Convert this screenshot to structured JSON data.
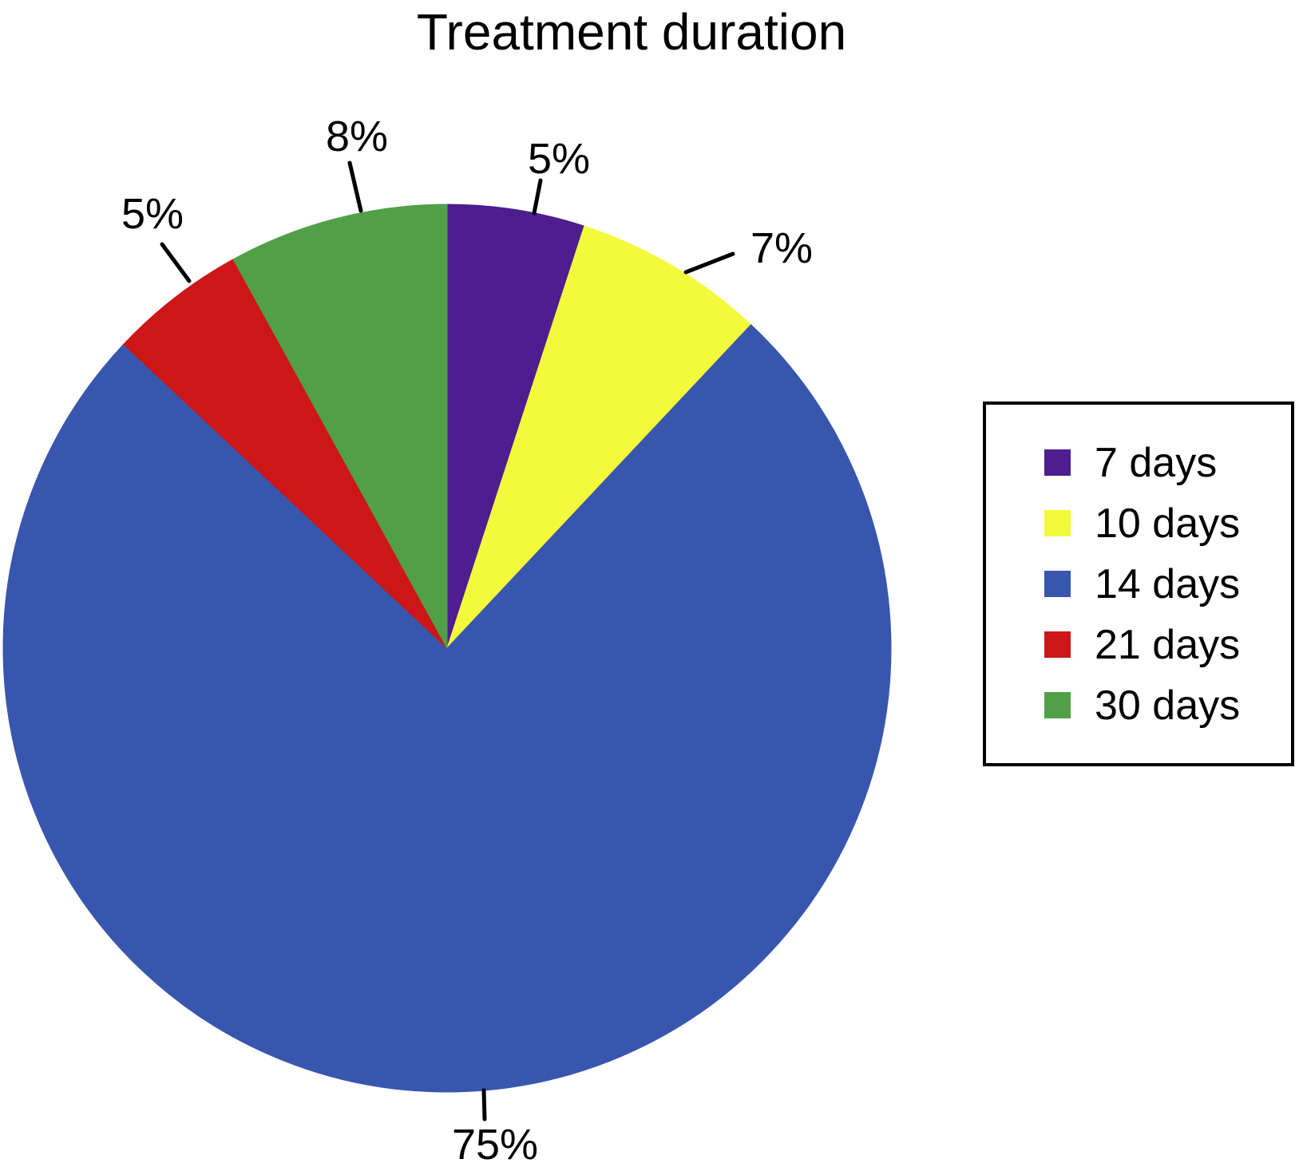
{
  "chart_data": {
    "type": "pie",
    "title": "Treatment duration",
    "categories": [
      "7 days",
      "10 days",
      "14 days",
      "21 days",
      "30 days"
    ],
    "values": [
      5,
      7,
      75,
      5,
      8
    ],
    "value_labels": [
      "5%",
      "7%",
      "75%",
      "5%",
      "8%"
    ],
    "colors": [
      "#4E1D8F",
      "#F3FA3C",
      "#3956AE",
      "#CC1617",
      "#51A048"
    ],
    "units": "percent",
    "start_angle_deg": 0,
    "direction": "clockwise",
    "legend_position": "right",
    "label_color": "#000000",
    "background_color": "#FFFFFF"
  }
}
